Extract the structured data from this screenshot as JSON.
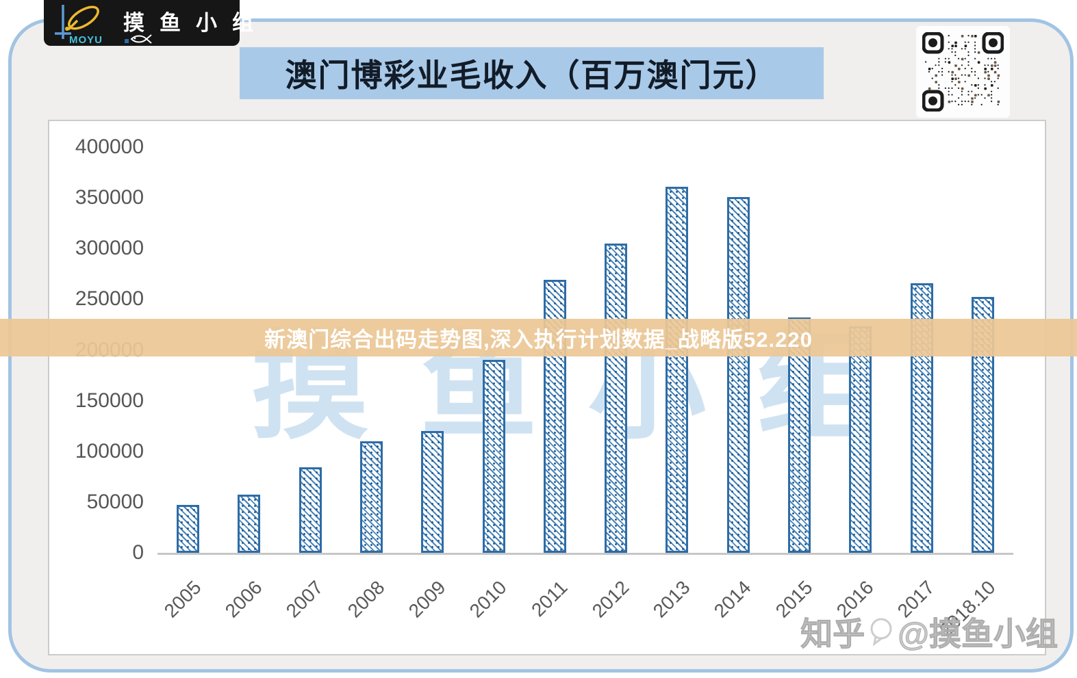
{
  "logo": {
    "brand": "摸鱼小组",
    "sub": "MOYU"
  },
  "header": {
    "title": "澳门博彩业毛收入（百万澳门元）"
  },
  "banner": {
    "text": "新澳门综合出码走势图,深入执行计划数据_战略版52.220"
  },
  "watermarks": {
    "center": "摸鱼小组",
    "bottom_prefix": "知乎",
    "bottom_handle": "@摸鱼小组"
  },
  "icons": {
    "qr_code": "qr-code",
    "fish": "fish-icon"
  },
  "colors": {
    "frame_border": "#a2c3e3",
    "frame_bg": "#f0efee",
    "title_bg": "#a9c9e8",
    "bar_border": "#2d6ca6",
    "bar_hatch": "#3e7cb2",
    "banner_bg": "#ecc796",
    "watermark_blue": "#cfe2f2",
    "axis_text": "#565656"
  },
  "chart_data": {
    "type": "bar",
    "title": "澳门博彩业毛收入（百万澳门元）",
    "categories": [
      "2005",
      "2006",
      "2007",
      "2008",
      "2009",
      "2010",
      "2011",
      "2012",
      "2013",
      "2014",
      "2015",
      "2016",
      "2017",
      "2018.10"
    ],
    "values": [
      47000,
      57500,
      84000,
      110000,
      120000,
      190000,
      269000,
      305000,
      361000,
      351000,
      232000,
      223000,
      266000,
      252000
    ],
    "xlabel": "",
    "ylabel": "",
    "ylim": [
      0,
      400000
    ],
    "yticks": [
      0,
      50000,
      100000,
      150000,
      200000,
      250000,
      300000,
      350000,
      400000
    ],
    "grid": false,
    "legend": false,
    "bar_style": "white fill with blue diagonal hatch, blue outline"
  }
}
